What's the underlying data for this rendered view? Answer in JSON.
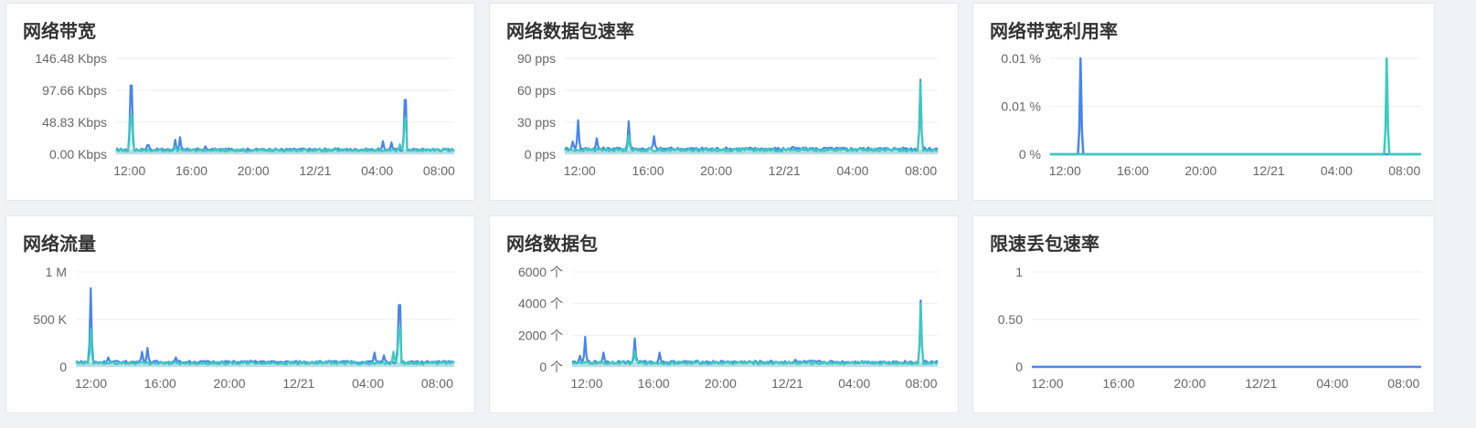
{
  "colors": {
    "series_a": "#4785ee",
    "series_b": "#3ccbbd",
    "band": "#b8dde6",
    "grid": "#eeeeee",
    "axis_text": "#666666"
  },
  "chart_data": [
    {
      "type": "line",
      "title": "网络带宽",
      "yticks": [
        "0.00 Kbps",
        "48.83 Kbps",
        "97.66 Kbps",
        "146.48 Kbps"
      ],
      "ylim": [
        0,
        146.48
      ],
      "xticks": [
        "12:00",
        "16:00",
        "20:00",
        "12/21",
        "04:00",
        "08:00"
      ],
      "series": [
        {
          "color": "#4785ee",
          "baseline": 7,
          "noise": 2,
          "spikes": [
            [
              0.045,
              105
            ],
            [
              0.095,
              14
            ],
            [
              0.175,
              22
            ],
            [
              0.19,
              26
            ],
            [
              0.265,
              12
            ],
            [
              0.79,
              20
            ],
            [
              0.815,
              18
            ],
            [
              0.855,
              83
            ]
          ]
        },
        {
          "color": "#3ccbbd",
          "baseline": 6,
          "noise": 2,
          "spikes": [
            [
              0.045,
              60
            ],
            [
              0.175,
              12
            ],
            [
              0.855,
              55
            ],
            [
              0.84,
              15
            ]
          ]
        }
      ]
    },
    {
      "type": "line",
      "title": "网络数据包速率",
      "yticks": [
        "0 pps",
        "30 pps",
        "60 pps",
        "90 pps"
      ],
      "ylim": [
        0,
        90
      ],
      "xticks": [
        "12:00",
        "16:00",
        "20:00",
        "12/21",
        "04:00",
        "08:00"
      ],
      "series": [
        {
          "color": "#4785ee",
          "baseline": 5,
          "noise": 1.5,
          "spikes": [
            [
              0.02,
              12
            ],
            [
              0.035,
              32
            ],
            [
              0.085,
              15
            ],
            [
              0.17,
              31
            ],
            [
              0.24,
              17
            ],
            [
              0.61,
              7
            ],
            [
              0.955,
              70
            ]
          ]
        },
        {
          "color": "#3ccbbd",
          "baseline": 4,
          "noise": 1.5,
          "spikes": [
            [
              0.17,
              18
            ],
            [
              0.955,
              68
            ]
          ]
        }
      ]
    },
    {
      "type": "line",
      "title": "网络带宽利用率",
      "yticks": [
        "0 %",
        "0.01 %",
        "0.01 %"
      ],
      "ylim": [
        0,
        0.01
      ],
      "xticks": [
        "12:00",
        "16:00",
        "20:00",
        "12/21",
        "04:00",
        "08:00"
      ],
      "series": [
        {
          "color": "#4785ee",
          "baseline": 0,
          "noise": 0,
          "spikes": [
            [
              0.083,
              0.01
            ]
          ]
        },
        {
          "color": "#3ccbbd",
          "baseline": 0,
          "noise": 0,
          "spikes": [
            [
              0.906,
              0.01
            ]
          ]
        }
      ]
    },
    {
      "type": "line",
      "title": "网络流量",
      "yticks": [
        "0",
        "500 K",
        "1 M"
      ],
      "ylim": [
        0,
        1
      ],
      "xticks": [
        "12:00",
        "16:00",
        "20:00",
        "12/21",
        "04:00",
        "08:00"
      ],
      "series": [
        {
          "color": "#4785ee",
          "baseline": 0.05,
          "noise": 0.015,
          "spikes": [
            [
              0.04,
              0.83
            ],
            [
              0.085,
              0.1
            ],
            [
              0.175,
              0.16
            ],
            [
              0.19,
              0.2
            ],
            [
              0.265,
              0.1
            ],
            [
              0.79,
              0.15
            ],
            [
              0.815,
              0.12
            ],
            [
              0.855,
              0.65
            ]
          ]
        },
        {
          "color": "#3ccbbd",
          "baseline": 0.04,
          "noise": 0.015,
          "spikes": [
            [
              0.04,
              0.4
            ],
            [
              0.84,
              0.16
            ],
            [
              0.855,
              0.4
            ]
          ]
        }
      ]
    },
    {
      "type": "line",
      "title": "网络数据包",
      "yticks": [
        "0 个",
        "2000 个",
        "4000 个",
        "6000 个"
      ],
      "ylim": [
        0,
        6000
      ],
      "xticks": [
        "12:00",
        "16:00",
        "20:00",
        "12/21",
        "04:00",
        "08:00"
      ],
      "series": [
        {
          "color": "#4785ee",
          "baseline": 300,
          "noise": 90,
          "spikes": [
            [
              0.02,
              700
            ],
            [
              0.035,
              1900
            ],
            [
              0.085,
              900
            ],
            [
              0.17,
              1800
            ],
            [
              0.24,
              900
            ],
            [
              0.61,
              450
            ],
            [
              0.955,
              4200
            ]
          ]
        },
        {
          "color": "#3ccbbd",
          "baseline": 250,
          "noise": 90,
          "spikes": [
            [
              0.17,
              1000
            ],
            [
              0.955,
              4000
            ]
          ]
        }
      ]
    },
    {
      "type": "line",
      "title": "限速丢包速率",
      "yticks": [
        "0",
        "0.50",
        "1"
      ],
      "ylim": [
        0,
        1
      ],
      "xticks": [
        "12:00",
        "16:00",
        "20:00",
        "12/21",
        "04:00",
        "08:00"
      ],
      "series": [
        {
          "color": "#4785ee",
          "baseline": 0,
          "noise": 0,
          "spikes": []
        }
      ]
    }
  ]
}
